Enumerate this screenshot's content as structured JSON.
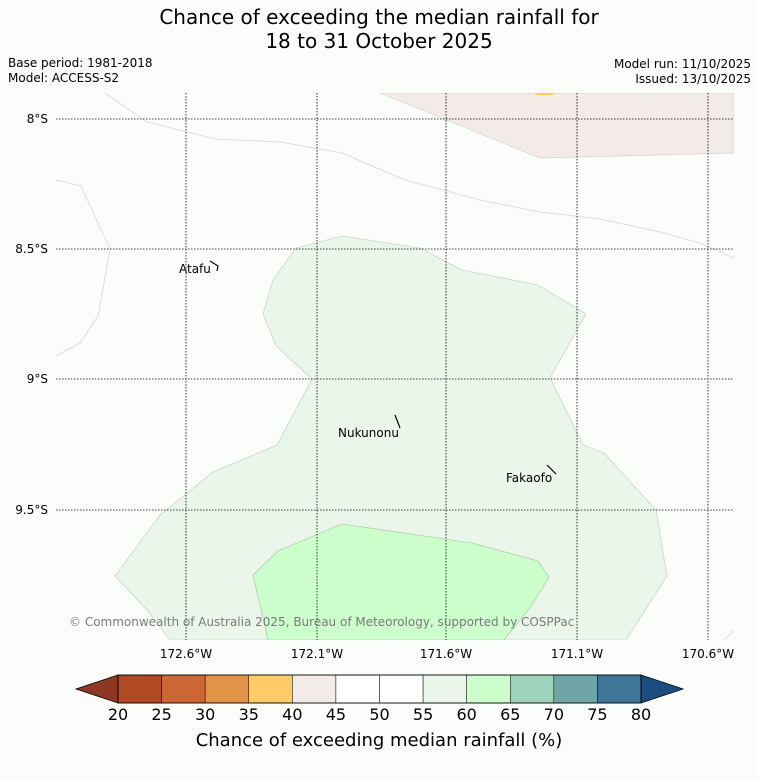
{
  "title_line1": "Chance of exceeding the median rainfall for",
  "title_line2": "18 to 31 October 2025",
  "base_period": "Base period: 1981-2018",
  "model": "Model: ACCESS-S2",
  "model_run": "Model run: 11/10/2025",
  "issued": "Issued: 13/10/2025",
  "copyright": "© Commonwealth of Australia 2025, Bureau of Meteorology, supported by COSPPac",
  "lat_labels": [
    "8°S",
    "8.5°S",
    "9°S",
    "9.5°S"
  ],
  "lon_labels": [
    "172.6°W",
    "172.1°W",
    "171.6°W",
    "171.1°W",
    "170.6°W"
  ],
  "places": [
    {
      "name": "Atafu"
    },
    {
      "name": "Nukunonu"
    },
    {
      "name": "Fakaofo"
    }
  ],
  "colorbar": {
    "label": "Chance of exceeding median rainfall (%)",
    "ticks": [
      "20",
      "25",
      "30",
      "35",
      "40",
      "45",
      "50",
      "55",
      "60",
      "65",
      "70",
      "75",
      "80"
    ],
    "colors": [
      "#b04a25",
      "#cc6634",
      "#e29547",
      "#fecb67",
      "#f2ebe7",
      "#ffffff",
      "#ffffff",
      "#ebf6ea",
      "#ccffcc",
      "#9ed2bb",
      "#6fa5a7",
      "#3f7597"
    ],
    "low_extend_color": "#8e3823",
    "high_extend_color": "#1b4d80"
  }
}
